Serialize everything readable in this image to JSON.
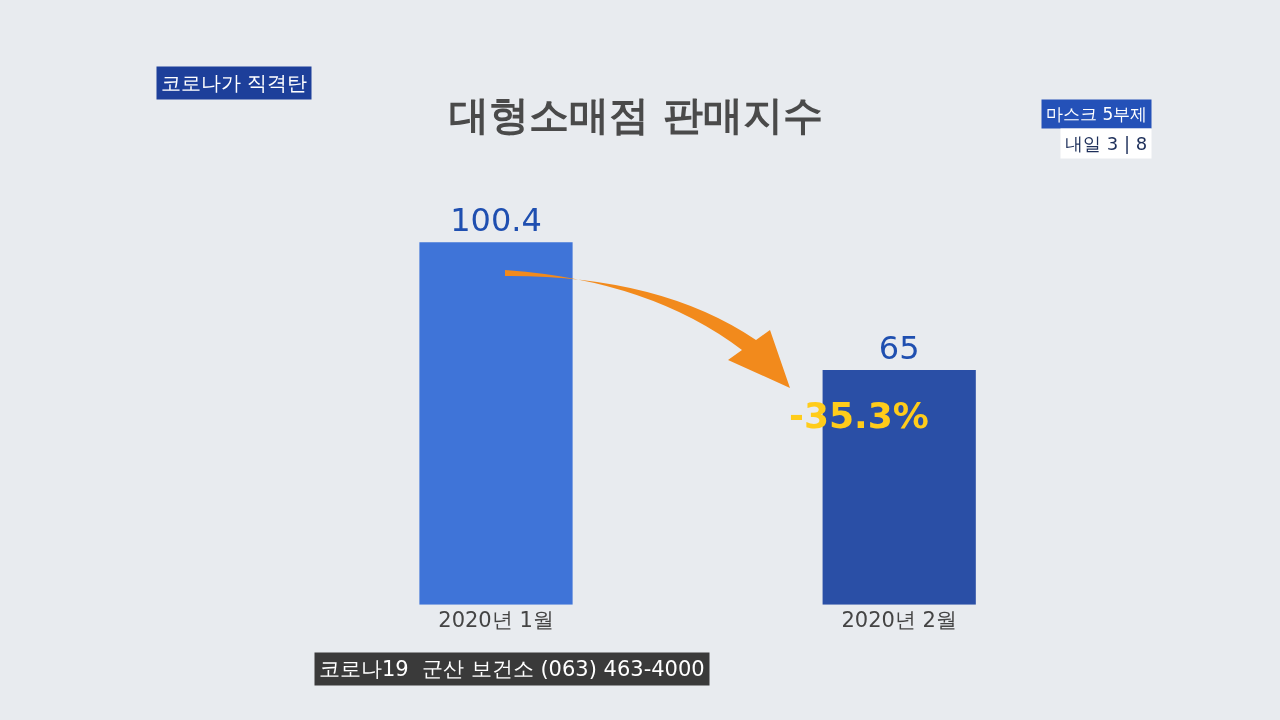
{
  "chart_data": {
    "type": "bar",
    "title": "대형소매점 판매지수",
    "categories": [
      "2020년 1월",
      "2020년 2월"
    ],
    "values": [
      100.4,
      65
    ],
    "colors": [
      "#3f74d8",
      "#2a4fa6"
    ],
    "tick_labels": "x",
    "grid": false,
    "data_labels": true,
    "annotations": [
      {
        "text": "-35.3%",
        "x": "2020년 2월",
        "y": 65
      },
      "코로나가 직격탄",
      "마스크 5부제",
      "내일 3 | 8",
      "코로나19  군산 보건소 (063) 463-4000"
    ]
  }
}
